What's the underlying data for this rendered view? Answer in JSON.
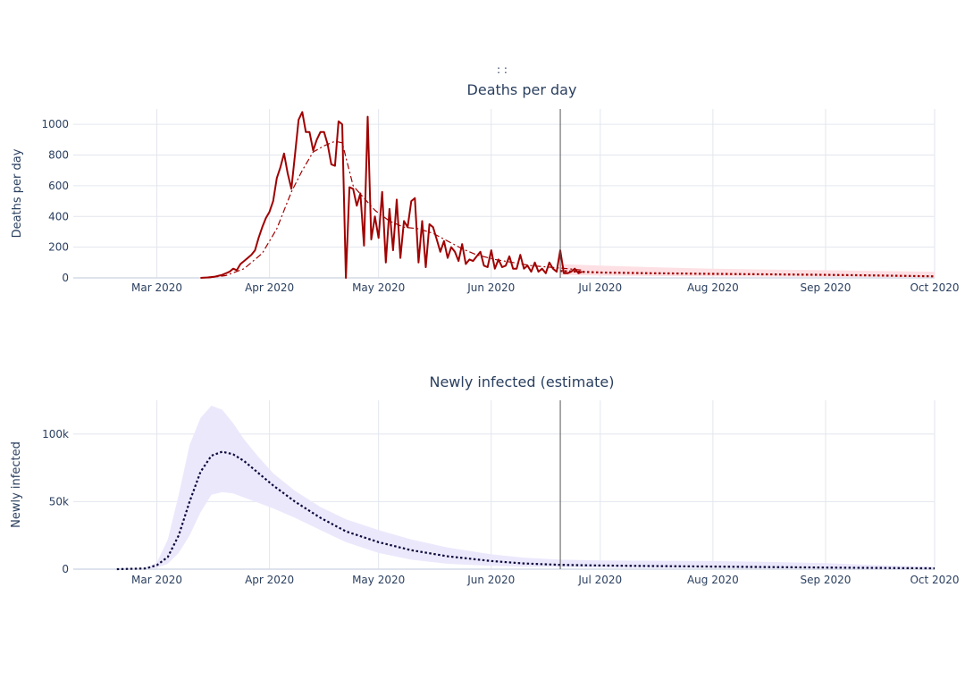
{
  "top_label": ":          :",
  "chart_data": [
    {
      "type": "line",
      "title": "Deaths per day",
      "ylabel": "Deaths per day",
      "xlabel": "",
      "x_ticks": [
        "Mar 2020",
        "Apr 2020",
        "May 2020",
        "Jun 2020",
        "Jul 2020",
        "Aug 2020",
        "Sep 2020",
        "Oct 2020"
      ],
      "y_ticks": [
        "0",
        "200",
        "400",
        "600",
        "800",
        "1000"
      ],
      "xlim": [
        "2020-02-07",
        "2020-10-01"
      ],
      "ylim": [
        0,
        1100
      ],
      "grid": true,
      "colors": {
        "observed": "#a00000",
        "smoothed": "#a00000",
        "projection": "#a00000",
        "band": "#fde0e4",
        "divider": "#555555"
      },
      "divider_date": "2020-06-20",
      "series": [
        {
          "style": "solid",
          "points": [
            [
              "2020-03-13",
              0
            ],
            [
              "2020-03-15",
              3
            ],
            [
              "2020-03-17",
              8
            ],
            [
              "2020-03-19",
              20
            ],
            [
              "2020-03-21",
              40
            ],
            [
              "2020-03-22",
              60
            ],
            [
              "2020-03-23",
              50
            ],
            [
              "2020-03-24",
              90
            ],
            [
              "2020-03-25",
              110
            ],
            [
              "2020-03-26",
              130
            ],
            [
              "2020-03-27",
              150
            ],
            [
              "2020-03-28",
              180
            ],
            [
              "2020-03-29",
              260
            ],
            [
              "2020-03-30",
              330
            ],
            [
              "2020-03-31",
              390
            ],
            [
              "2020-04-01",
              430
            ],
            [
              "2020-04-02",
              500
            ],
            [
              "2020-04-03",
              650
            ],
            [
              "2020-04-04",
              720
            ],
            [
              "2020-04-05",
              810
            ],
            [
              "2020-04-06",
              680
            ],
            [
              "2020-04-07",
              580
            ],
            [
              "2020-04-08",
              800
            ],
            [
              "2020-04-09",
              1030
            ],
            [
              "2020-04-10",
              1080
            ],
            [
              "2020-04-11",
              950
            ],
            [
              "2020-04-12",
              950
            ],
            [
              "2020-04-13",
              830
            ],
            [
              "2020-04-14",
              900
            ],
            [
              "2020-04-15",
              950
            ],
            [
              "2020-04-16",
              950
            ],
            [
              "2020-04-17",
              870
            ],
            [
              "2020-04-18",
              740
            ],
            [
              "2020-04-19",
              730
            ],
            [
              "2020-04-20",
              1020
            ],
            [
              "2020-04-21",
              1000
            ],
            [
              "2020-04-22",
              0
            ],
            [
              "2020-04-23",
              590
            ],
            [
              "2020-04-24",
              580
            ],
            [
              "2020-04-25",
              470
            ],
            [
              "2020-04-26",
              550
            ],
            [
              "2020-04-27",
              210
            ],
            [
              "2020-04-28",
              1050
            ],
            [
              "2020-04-29",
              250
            ],
            [
              "2020-04-30",
              400
            ],
            [
              "2020-05-01",
              260
            ],
            [
              "2020-05-02",
              560
            ],
            [
              "2020-05-03",
              100
            ],
            [
              "2020-05-04",
              450
            ],
            [
              "2020-05-05",
              180
            ],
            [
              "2020-05-06",
              510
            ],
            [
              "2020-05-07",
              130
            ],
            [
              "2020-05-08",
              370
            ],
            [
              "2020-05-09",
              330
            ],
            [
              "2020-05-10",
              500
            ],
            [
              "2020-05-11",
              520
            ],
            [
              "2020-05-12",
              100
            ],
            [
              "2020-05-13",
              370
            ],
            [
              "2020-05-14",
              70
            ],
            [
              "2020-05-15",
              350
            ],
            [
              "2020-05-16",
              330
            ],
            [
              "2020-05-17",
              250
            ],
            [
              "2020-05-18",
              170
            ],
            [
              "2020-05-19",
              240
            ],
            [
              "2020-05-20",
              130
            ],
            [
              "2020-05-21",
              200
            ],
            [
              "2020-05-22",
              170
            ],
            [
              "2020-05-23",
              110
            ],
            [
              "2020-05-24",
              220
            ],
            [
              "2020-05-25",
              90
            ],
            [
              "2020-05-26",
              120
            ],
            [
              "2020-05-27",
              110
            ],
            [
              "2020-05-28",
              140
            ],
            [
              "2020-05-29",
              170
            ],
            [
              "2020-05-30",
              80
            ],
            [
              "2020-05-31",
              70
            ],
            [
              "2020-06-01",
              180
            ],
            [
              "2020-06-02",
              60
            ],
            [
              "2020-06-03",
              120
            ],
            [
              "2020-06-04",
              70
            ],
            [
              "2020-06-05",
              80
            ],
            [
              "2020-06-06",
              140
            ],
            [
              "2020-06-07",
              60
            ],
            [
              "2020-06-08",
              60
            ],
            [
              "2020-06-09",
              150
            ],
            [
              "2020-06-10",
              60
            ],
            [
              "2020-06-11",
              80
            ],
            [
              "2020-06-12",
              40
            ],
            [
              "2020-06-13",
              100
            ],
            [
              "2020-06-14",
              40
            ],
            [
              "2020-06-15",
              60
            ],
            [
              "2020-06-16",
              30
            ],
            [
              "2020-06-17",
              100
            ],
            [
              "2020-06-18",
              60
            ],
            [
              "2020-06-19",
              40
            ],
            [
              "2020-06-20",
              180
            ],
            [
              "2020-06-21",
              30
            ],
            [
              "2020-06-22",
              30
            ],
            [
              "2020-06-23",
              40
            ],
            [
              "2020-06-24",
              60
            ],
            [
              "2020-06-25",
              30
            ],
            [
              "2020-06-26",
              40
            ]
          ]
        },
        {
          "style": "dashdot",
          "points": [
            [
              "2020-03-15",
              0
            ],
            [
              "2020-03-20",
              15
            ],
            [
              "2020-03-25",
              60
            ],
            [
              "2020-03-30",
              160
            ],
            [
              "2020-04-03",
              320
            ],
            [
              "2020-04-07",
              560
            ],
            [
              "2020-04-10",
              700
            ],
            [
              "2020-04-13",
              820
            ],
            [
              "2020-04-16",
              860
            ],
            [
              "2020-04-19",
              890
            ],
            [
              "2020-04-21",
              880
            ],
            [
              "2020-04-24",
              600
            ],
            [
              "2020-04-27",
              520
            ],
            [
              "2020-04-30",
              440
            ],
            [
              "2020-05-04",
              370
            ],
            [
              "2020-05-08",
              330
            ],
            [
              "2020-05-12",
              320
            ],
            [
              "2020-05-16",
              290
            ],
            [
              "2020-05-20",
              240
            ],
            [
              "2020-05-24",
              190
            ],
            [
              "2020-05-28",
              150
            ],
            [
              "2020-06-02",
              120
            ],
            [
              "2020-06-07",
              100
            ],
            [
              "2020-06-12",
              80
            ],
            [
              "2020-06-17",
              70
            ],
            [
              "2020-06-22",
              60
            ],
            [
              "2020-06-26",
              50
            ]
          ]
        },
        {
          "style": "dotted",
          "points": [
            [
              "2020-06-20",
              45
            ],
            [
              "2020-07-01",
              35
            ],
            [
              "2020-07-15",
              30
            ],
            [
              "2020-08-01",
              26
            ],
            [
              "2020-08-15",
              23
            ],
            [
              "2020-09-01",
              20
            ],
            [
              "2020-09-15",
              16
            ],
            [
              "2020-10-01",
              10
            ]
          ]
        }
      ],
      "band": {
        "upper": [
          [
            "2020-06-20",
            90
          ],
          [
            "2020-07-01",
            80
          ],
          [
            "2020-07-15",
            70
          ],
          [
            "2020-08-01",
            60
          ],
          [
            "2020-08-15",
            55
          ],
          [
            "2020-09-01",
            50
          ],
          [
            "2020-09-15",
            45
          ],
          [
            "2020-10-01",
            40
          ]
        ],
        "lower": [
          [
            "2020-06-20",
            20
          ],
          [
            "2020-07-01",
            15
          ],
          [
            "2020-07-15",
            12
          ],
          [
            "2020-08-01",
            10
          ],
          [
            "2020-08-15",
            8
          ],
          [
            "2020-09-01",
            6
          ],
          [
            "2020-09-15",
            5
          ],
          [
            "2020-10-01",
            3
          ]
        ]
      }
    },
    {
      "type": "line",
      "title": "Newly infected (estimate)",
      "ylabel": "Newly infected",
      "xlabel": "",
      "x_ticks": [
        "Mar 2020",
        "Apr 2020",
        "May 2020",
        "Jun 2020",
        "Jul 2020",
        "Aug 2020",
        "Sep 2020",
        "Oct 2020"
      ],
      "y_ticks": [
        "0",
        "50k",
        "100k"
      ],
      "xlim": [
        "2020-02-07",
        "2020-10-01"
      ],
      "ylim": [
        0,
        125000
      ],
      "grid": true,
      "colors": {
        "estimate": "#0a0a3c",
        "band": "#ece8fc",
        "divider": "#555555"
      },
      "divider_date": "2020-06-20",
      "series": [
        {
          "style": "dotted",
          "points": [
            [
              "2020-02-19",
              0
            ],
            [
              "2020-02-27",
              500
            ],
            [
              "2020-03-01",
              3000
            ],
            [
              "2020-03-04",
              9000
            ],
            [
              "2020-03-07",
              25000
            ],
            [
              "2020-03-10",
              50000
            ],
            [
              "2020-03-13",
              72000
            ],
            [
              "2020-03-16",
              84000
            ],
            [
              "2020-03-19",
              87000
            ],
            [
              "2020-03-22",
              85000
            ],
            [
              "2020-03-25",
              80000
            ],
            [
              "2020-03-29",
              71000
            ],
            [
              "2020-04-02",
              62000
            ],
            [
              "2020-04-08",
              50000
            ],
            [
              "2020-04-15",
              38000
            ],
            [
              "2020-04-22",
              28000
            ],
            [
              "2020-05-01",
              20000
            ],
            [
              "2020-05-10",
              14000
            ],
            [
              "2020-05-20",
              9500
            ],
            [
              "2020-06-01",
              6000
            ],
            [
              "2020-06-10",
              4200
            ],
            [
              "2020-06-20",
              3200
            ],
            [
              "2020-07-01",
              2700
            ],
            [
              "2020-07-15",
              2300
            ],
            [
              "2020-08-01",
              1900
            ],
            [
              "2020-08-15",
              1600
            ],
            [
              "2020-09-01",
              1200
            ],
            [
              "2020-09-15",
              900
            ],
            [
              "2020-10-01",
              600
            ]
          ]
        }
      ],
      "band": {
        "upper": [
          [
            "2020-02-27",
            800
          ],
          [
            "2020-03-01",
            5000
          ],
          [
            "2020-03-04",
            22000
          ],
          [
            "2020-03-07",
            55000
          ],
          [
            "2020-03-10",
            92000
          ],
          [
            "2020-03-13",
            112000
          ],
          [
            "2020-03-16",
            121000
          ],
          [
            "2020-03-19",
            118000
          ],
          [
            "2020-03-22",
            108000
          ],
          [
            "2020-03-25",
            96000
          ],
          [
            "2020-03-29",
            83000
          ],
          [
            "2020-04-02",
            71000
          ],
          [
            "2020-04-08",
            58000
          ],
          [
            "2020-04-15",
            46000
          ],
          [
            "2020-04-22",
            37000
          ],
          [
            "2020-05-01",
            29000
          ],
          [
            "2020-05-10",
            22000
          ],
          [
            "2020-05-20",
            16000
          ],
          [
            "2020-06-01",
            11000
          ],
          [
            "2020-06-10",
            8500
          ],
          [
            "2020-06-20",
            7000
          ],
          [
            "2020-07-01",
            6500
          ],
          [
            "2020-07-15",
            6200
          ],
          [
            "2020-08-01",
            6000
          ],
          [
            "2020-08-15",
            5500
          ],
          [
            "2020-09-01",
            4500
          ],
          [
            "2020-09-15",
            3000
          ],
          [
            "2020-10-01",
            1800
          ]
        ],
        "lower": [
          [
            "2020-02-27",
            100
          ],
          [
            "2020-03-01",
            1000
          ],
          [
            "2020-03-04",
            4000
          ],
          [
            "2020-03-07",
            12000
          ],
          [
            "2020-03-10",
            25000
          ],
          [
            "2020-03-13",
            42000
          ],
          [
            "2020-03-16",
            55000
          ],
          [
            "2020-03-19",
            57000
          ],
          [
            "2020-03-22",
            56000
          ],
          [
            "2020-03-25",
            53000
          ],
          [
            "2020-03-29",
            49000
          ],
          [
            "2020-04-02",
            45000
          ],
          [
            "2020-04-08",
            38000
          ],
          [
            "2020-04-15",
            29000
          ],
          [
            "2020-04-22",
            20000
          ],
          [
            "2020-05-01",
            12000
          ],
          [
            "2020-05-10",
            7000
          ],
          [
            "2020-05-20",
            4000
          ],
          [
            "2020-06-01",
            2500
          ],
          [
            "2020-06-10",
            1800
          ],
          [
            "2020-06-20",
            1500
          ],
          [
            "2020-07-01",
            1200
          ],
          [
            "2020-07-15",
            900
          ],
          [
            "2020-08-01",
            700
          ],
          [
            "2020-08-15",
            500
          ],
          [
            "2020-09-01",
            300
          ],
          [
            "2020-09-15",
            200
          ],
          [
            "2020-10-01",
            100
          ]
        ]
      }
    }
  ]
}
